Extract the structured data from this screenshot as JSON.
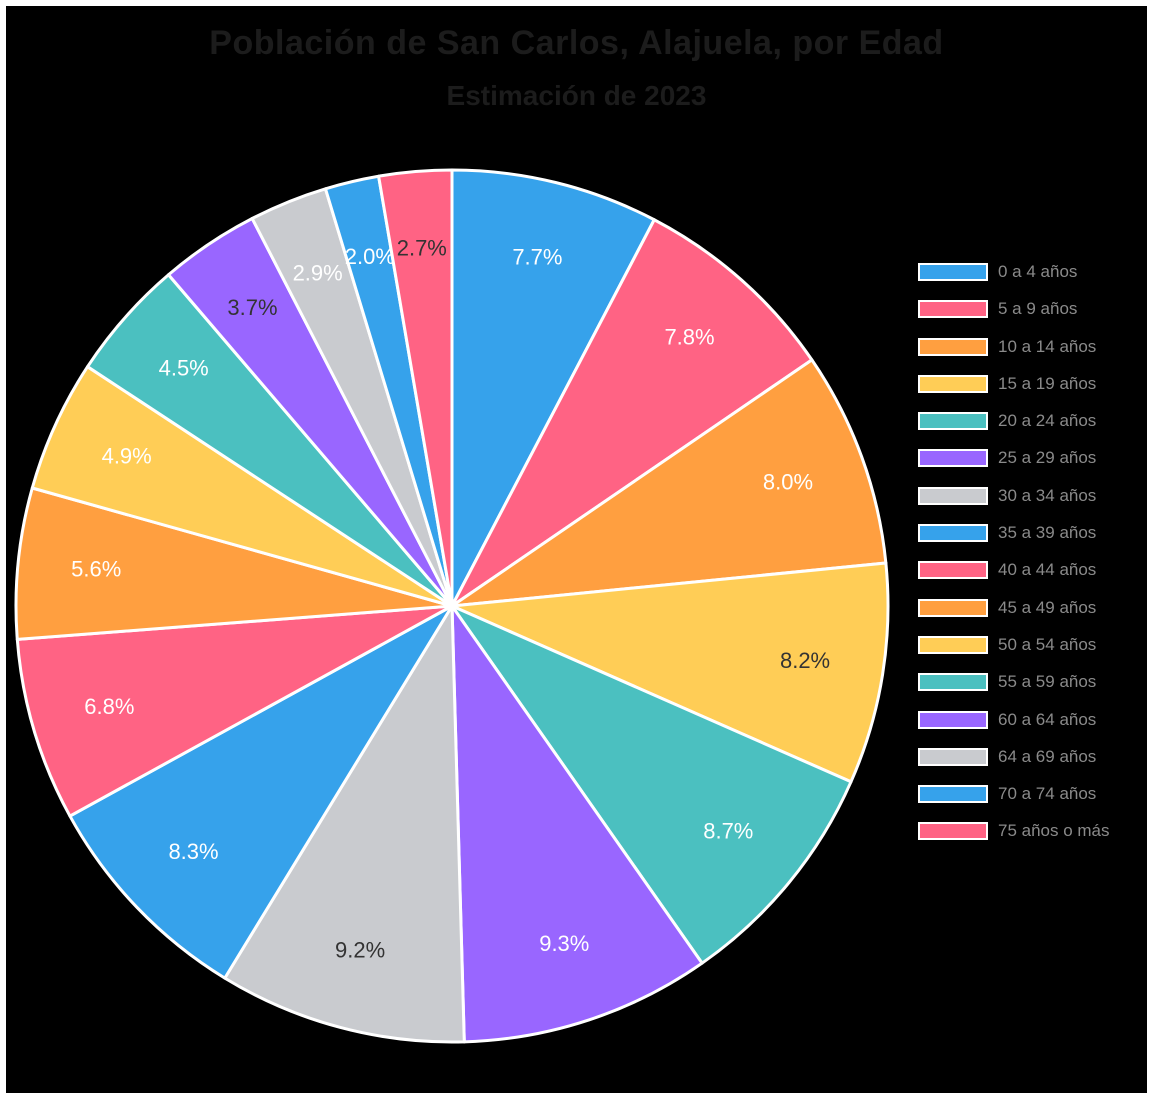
{
  "chart_data": {
    "type": "pie",
    "title": "Población de San Carlos, Alajuela, por Edad",
    "subtitle": "Estimación de 2023",
    "legend_position": "right",
    "slices": [
      {
        "label": "0 a 4 años",
        "value": 7.7,
        "display": "7.7%",
        "color": "#36a2eb",
        "label_color": "#ffffff"
      },
      {
        "label": "5 a 9 años",
        "value": 7.8,
        "display": "7.8%",
        "color": "#ff6384",
        "label_color": "#ffffff"
      },
      {
        "label": "10 a 14 años",
        "value": 8.0,
        "display": "8.0%",
        "color": "#ff9f40",
        "label_color": "#ffffff"
      },
      {
        "label": "15 a 19 años",
        "value": 8.2,
        "display": "8.2%",
        "color": "#ffcd56",
        "label_color": "#333333"
      },
      {
        "label": "20 a 24 años",
        "value": 8.7,
        "display": "8.7%",
        "color": "#4bc0c0",
        "label_color": "#ffffff"
      },
      {
        "label": "25 a 29 años",
        "value": 9.3,
        "display": "9.3%",
        "color": "#9966ff",
        "label_color": "#ffffff"
      },
      {
        "label": "30 a 34 años",
        "value": 9.2,
        "display": "9.2%",
        "color": "#c9cbcf",
        "label_color": "#333333"
      },
      {
        "label": "35 a 39 años",
        "value": 8.3,
        "display": "8.3%",
        "color": "#36a2eb",
        "label_color": "#ffffff"
      },
      {
        "label": "40 a 44 años",
        "value": 6.8,
        "display": "6.8%",
        "color": "#ff6384",
        "label_color": "#ffffff"
      },
      {
        "label": "45 a 49 años",
        "value": 5.6,
        "display": "5.6%",
        "color": "#ff9f40",
        "label_color": "#ffffff"
      },
      {
        "label": "50 a 54 años",
        "value": 4.9,
        "display": "4.9%",
        "color": "#ffcd56",
        "label_color": "#ffffff"
      },
      {
        "label": "55 a 59 años",
        "value": 4.5,
        "display": "4.5%",
        "color": "#4bc0c0",
        "label_color": "#ffffff"
      },
      {
        "label": "60 a 64 años",
        "value": 3.7,
        "display": "3.7%",
        "color": "#9966ff",
        "label_color": "#333333"
      },
      {
        "label": "64 a 69 años",
        "value": 2.9,
        "display": "2.9%",
        "color": "#c9cbcf",
        "label_color": "#ffffff"
      },
      {
        "label": "70 a 74 años",
        "value": 2.0,
        "display": "2.0%",
        "color": "#36a2eb",
        "label_color": "#ffffff"
      },
      {
        "label": "75 años o más",
        "value": 2.7,
        "display": "2.7%",
        "color": "#ff6384",
        "label_color": "#333333"
      }
    ]
  }
}
